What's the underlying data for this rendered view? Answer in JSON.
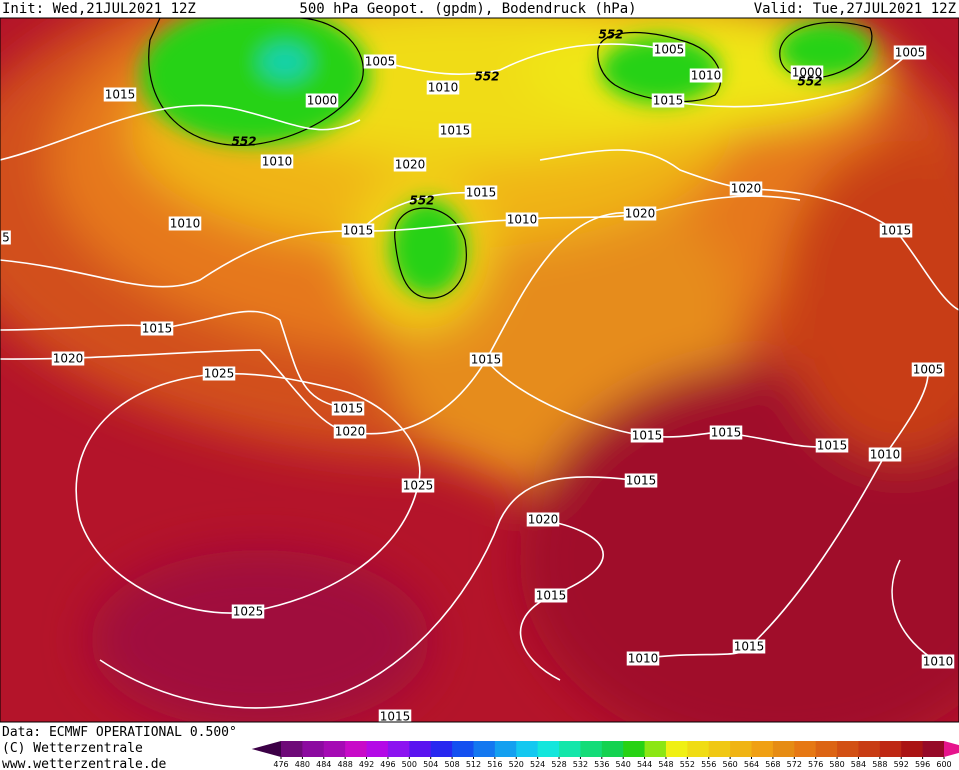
{
  "header": {
    "init": "Init: Wed,21JUL2021 12Z",
    "title": "500 hPa Geopot. (gpdm), Bodendruck (hPa)",
    "valid": "Valid: Tue,27JUL2021 12Z"
  },
  "footer": {
    "source": "Data: ECMWF OPERATIONAL 0.500°",
    "copyright": "(C) Wetterzentrale",
    "url": "www.wetterzentrale.de"
  },
  "isobar_labels": [
    1015,
    1005,
    1000,
    1010,
    1010,
    1015,
    1020,
    1015,
    1010,
    1010,
    1015,
    5,
    1005,
    1010,
    1015,
    1000,
    1005,
    1020,
    1020,
    1015,
    1015,
    1020,
    1025,
    1015,
    1005,
    1015,
    1020,
    1015,
    1015,
    1015,
    1010,
    1015,
    1025,
    1020,
    1025,
    1015,
    1015,
    1010,
    1010,
    1015
  ],
  "height_labels": [
    552,
    552,
    552,
    552,
    552
  ],
  "legend": {
    "values": [
      476,
      480,
      484,
      488,
      492,
      496,
      500,
      504,
      508,
      512,
      516,
      520,
      524,
      528,
      532,
      536,
      540,
      544,
      548,
      552,
      556,
      560,
      564,
      568,
      572,
      576,
      580,
      584,
      588,
      592,
      596,
      600
    ],
    "colors": [
      "#3c0046",
      "#6e0a78",
      "#8c0aa0",
      "#a50ab4",
      "#c80ac8",
      "#b40ae6",
      "#8c14f0",
      "#5a14f0",
      "#2828f0",
      "#1450f0",
      "#1478f0",
      "#14a0f0",
      "#14c8f0",
      "#14e6dc",
      "#14e6aa",
      "#14dc78",
      "#14d250",
      "#28d214",
      "#8ce614",
      "#f0f014",
      "#f0dc14",
      "#f0c814",
      "#f0b414",
      "#f0a014",
      "#e68c14",
      "#e67814",
      "#dc6414",
      "#d25014",
      "#c83c14",
      "#be2814",
      "#aa1414",
      "#960a28",
      "#e6148c"
    ]
  }
}
